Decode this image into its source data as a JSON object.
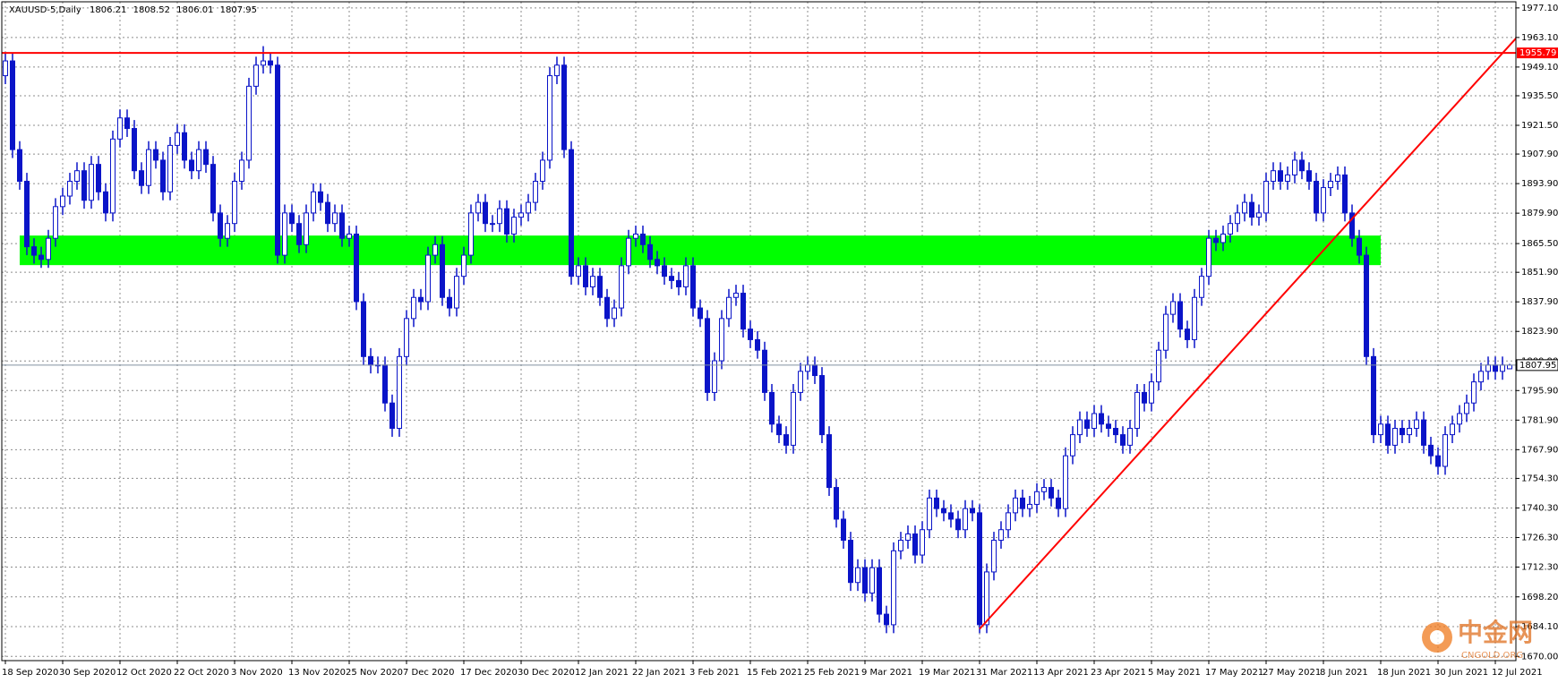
{
  "chart_data": {
    "type": "candlestick",
    "title": "XAUUSD-5,Daily",
    "categories": [
      "18 Sep 2020",
      null,
      null,
      null,
      null,
      null,
      null,
      null,
      "30 Sep 2020",
      null,
      null,
      null,
      null,
      null,
      null,
      null,
      "12 Oct 2020",
      null,
      null,
      null,
      null,
      null,
      null,
      null,
      "22 Oct 2020",
      null,
      null,
      null,
      null,
      null,
      null,
      null,
      "3 Nov 2020",
      null,
      null,
      null,
      null,
      null,
      null,
      null,
      "13 Nov 2020",
      null,
      null,
      null,
      null,
      null,
      null,
      null,
      "25 Nov 2020",
      null,
      null,
      null,
      null,
      null,
      null,
      null,
      "7 Dec 2020",
      null,
      null,
      null,
      null,
      null,
      null,
      null,
      "17 Dec 2020",
      null,
      null,
      null,
      null,
      null,
      null,
      null,
      "30 Dec 2020",
      null,
      null,
      null,
      null,
      null,
      null,
      null,
      "12 Jan 2021",
      null,
      null,
      null,
      null,
      null,
      null,
      null,
      "22 Jan 2021",
      null,
      null,
      null,
      null,
      null,
      null,
      null,
      "3 Feb 2021",
      null,
      null,
      null,
      null,
      null,
      null,
      null,
      "15 Feb 2021",
      null,
      null,
      null,
      null,
      null,
      null,
      null,
      "25 Feb 2021",
      null,
      null,
      null,
      null,
      null,
      null,
      null,
      "9 Mar 2021",
      null,
      null,
      null,
      null,
      null,
      null,
      null,
      "19 Mar 2021",
      null,
      null,
      null,
      null,
      null,
      null,
      null,
      "31 Mar 2021",
      null,
      null,
      null,
      null,
      null,
      null,
      null,
      "13 Apr 2021",
      null,
      null,
      null,
      null,
      null,
      null,
      null,
      "23 Apr 2021",
      null,
      null,
      null,
      null,
      null,
      null,
      null,
      "5 May 2021",
      null,
      null,
      null,
      null,
      null,
      null,
      null,
      "17 May 2021",
      null,
      null,
      null,
      null,
      null,
      null,
      null,
      "27 May 2021",
      null,
      null,
      null,
      null,
      null,
      null,
      null,
      "8 Jun 2021",
      null,
      null,
      null,
      null,
      null,
      null,
      null,
      "18 Jun 2021",
      null,
      null,
      null,
      null,
      null,
      null,
      null,
      "30 Jun 2021",
      null,
      null,
      null,
      null,
      null,
      null,
      null,
      "12 Jul 2021",
      null,
      null
    ],
    "open": [
      1945,
      1952,
      1910,
      1895,
      1864,
      1860,
      1858,
      1868,
      1883,
      1888,
      1895,
      1900,
      1886,
      1903,
      1890,
      1880,
      1915,
      1925,
      1920,
      1900,
      1893,
      1910,
      1905,
      1890,
      1912,
      1918,
      1905,
      1900,
      1910,
      1903,
      1880,
      1868,
      1875,
      1895,
      1905,
      1940,
      1950,
      1952,
      1950,
      1860,
      1880,
      1875,
      1865,
      1880,
      1890,
      1885,
      1875,
      1880,
      1868,
      1870,
      1838,
      1812,
      1808,
      1808,
      1790,
      1778,
      1812,
      1830,
      1840,
      1838,
      1860,
      1865,
      1840,
      1835,
      1850,
      1860,
      1880,
      1885,
      1875,
      1875,
      1882,
      1870,
      1878,
      1880,
      1885,
      1895,
      1905,
      1945,
      1950,
      1910,
      1850,
      1855,
      1845,
      1850,
      1840,
      1830,
      1835,
      1855,
      1868,
      1870,
      1865,
      1858,
      1855,
      1850,
      1848,
      1845,
      1855,
      1835,
      1830,
      1795,
      1810,
      1830,
      1840,
      1842,
      1825,
      1820,
      1815,
      1795,
      1780,
      1775,
      1770,
      1795,
      1805,
      1808,
      1803,
      1775,
      1750,
      1735,
      1725,
      1705,
      1712,
      1700,
      1712,
      1690,
      1685,
      1720,
      1725,
      1728,
      1718,
      1730,
      1745,
      1740,
      1738,
      1735,
      1730,
      1740,
      1738,
      1685,
      1710,
      1725,
      1730,
      1738,
      1745,
      1740,
      1742,
      1748,
      1750,
      1745,
      1740,
      1765,
      1775,
      1782,
      1778,
      1785,
      1780,
      1778,
      1775,
      1770,
      1778,
      1795,
      1790,
      1800,
      1815,
      1832,
      1838,
      1825,
      1820,
      1840,
      1850,
      1868,
      1866,
      1870,
      1875,
      1880,
      1885,
      1878,
      1880,
      1895,
      1900,
      1895,
      1898,
      1905,
      1900,
      1895,
      1880,
      1892,
      1895,
      1898,
      1880,
      1868,
      1860,
      1812,
      1775,
      1780,
      1770,
      1778,
      1775,
      1778,
      1782,
      1770,
      1765,
      1760,
      1775,
      1780,
      1785,
      1790,
      1800,
      1805,
      1808,
      1805,
      1806.21
    ],
    "high": [
      1956,
      1956,
      1914,
      1899,
      1868,
      1864,
      1872,
      1887,
      1892,
      1899,
      1904,
      1904,
      1907,
      1907,
      1894,
      1919,
      1929,
      1929,
      1924,
      1904,
      1914,
      1914,
      1909,
      1916,
      1922,
      1922,
      1909,
      1914,
      1914,
      1907,
      1884,
      1879,
      1899,
      1909,
      1944,
      1954,
      1959,
      1956,
      1954,
      1884,
      1884,
      1879,
      1884,
      1894,
      1894,
      1889,
      1884,
      1884,
      1874,
      1874,
      1842,
      1816,
      1812,
      1812,
      1794,
      1816,
      1834,
      1844,
      1844,
      1864,
      1869,
      1869,
      1844,
      1854,
      1864,
      1884,
      1889,
      1889,
      1879,
      1886,
      1886,
      1882,
      1884,
      1889,
      1899,
      1909,
      1949,
      1954,
      1954,
      1914,
      1859,
      1859,
      1854,
      1854,
      1844,
      1839,
      1859,
      1872,
      1874,
      1874,
      1869,
      1862,
      1859,
      1854,
      1852,
      1859,
      1859,
      1839,
      1834,
      1814,
      1834,
      1844,
      1846,
      1846,
      1829,
      1824,
      1819,
      1799,
      1784,
      1779,
      1799,
      1809,
      1812,
      1812,
      1807,
      1779,
      1754,
      1739,
      1729,
      1716,
      1716,
      1716,
      1716,
      1694,
      1724,
      1729,
      1732,
      1732,
      1734,
      1749,
      1749,
      1744,
      1742,
      1739,
      1744,
      1744,
      1742,
      1714,
      1729,
      1734,
      1742,
      1749,
      1749,
      1746,
      1752,
      1754,
      1754,
      1749,
      1769,
      1779,
      1786,
      1786,
      1789,
      1789,
      1784,
      1782,
      1779,
      1782,
      1799,
      1799,
      1804,
      1819,
      1836,
      1842,
      1842,
      1829,
      1844,
      1854,
      1872,
      1872,
      1874,
      1879,
      1884,
      1889,
      1889,
      1884,
      1899,
      1904,
      1904,
      1902,
      1909,
      1909,
      1904,
      1899,
      1896,
      1899,
      1902,
      1902,
      1884,
      1872,
      1864,
      1816,
      1784,
      1784,
      1782,
      1782,
      1782,
      1786,
      1786,
      1774,
      1769,
      1779,
      1784,
      1789,
      1794,
      1804,
      1809,
      1812,
      1812,
      1812,
      1808.52
    ],
    "low": [
      1941,
      1906,
      1891,
      1860,
      1856,
      1854,
      1854,
      1864,
      1879,
      1884,
      1891,
      1882,
      1882,
      1886,
      1876,
      1876,
      1911,
      1916,
      1896,
      1889,
      1889,
      1901,
      1886,
      1886,
      1908,
      1901,
      1896,
      1896,
      1899,
      1876,
      1864,
      1864,
      1871,
      1891,
      1901,
      1936,
      1946,
      1946,
      1856,
      1856,
      1871,
      1861,
      1861,
      1876,
      1881,
      1871,
      1871,
      1864,
      1864,
      1834,
      1808,
      1804,
      1804,
      1786,
      1774,
      1774,
      1808,
      1826,
      1834,
      1834,
      1856,
      1836,
      1831,
      1831,
      1846,
      1856,
      1876,
      1871,
      1871,
      1871,
      1866,
      1866,
      1874,
      1876,
      1881,
      1891,
      1901,
      1941,
      1906,
      1846,
      1846,
      1841,
      1841,
      1836,
      1826,
      1826,
      1831,
      1851,
      1864,
      1861,
      1854,
      1851,
      1846,
      1844,
      1841,
      1841,
      1831,
      1826,
      1791,
      1791,
      1806,
      1826,
      1836,
      1821,
      1816,
      1811,
      1791,
      1776,
      1771,
      1766,
      1766,
      1791,
      1801,
      1799,
      1771,
      1746,
      1731,
      1721,
      1701,
      1701,
      1696,
      1696,
      1686,
      1681,
      1681,
      1716,
      1721,
      1714,
      1714,
      1726,
      1736,
      1734,
      1731,
      1726,
      1726,
      1734,
      1681,
      1681,
      1706,
      1721,
      1726,
      1734,
      1736,
      1736,
      1738,
      1744,
      1741,
      1736,
      1736,
      1761,
      1771,
      1774,
      1774,
      1776,
      1774,
      1771,
      1766,
      1766,
      1774,
      1786,
      1786,
      1796,
      1811,
      1828,
      1821,
      1816,
      1816,
      1836,
      1846,
      1862,
      1862,
      1866,
      1871,
      1876,
      1874,
      1874,
      1876,
      1891,
      1891,
      1891,
      1894,
      1896,
      1891,
      1876,
      1876,
      1888,
      1891,
      1876,
      1864,
      1856,
      1808,
      1771,
      1771,
      1766,
      1766,
      1771,
      1771,
      1774,
      1766,
      1761,
      1756,
      1756,
      1771,
      1776,
      1781,
      1786,
      1796,
      1801,
      1801,
      1801,
      1806.01
    ],
    "close": [
      1952,
      1910,
      1895,
      1864,
      1860,
      1858,
      1868,
      1883,
      1888,
      1895,
      1900,
      1886,
      1903,
      1890,
      1880,
      1915,
      1925,
      1920,
      1900,
      1893,
      1910,
      1905,
      1890,
      1912,
      1918,
      1905,
      1900,
      1910,
      1903,
      1880,
      1868,
      1875,
      1895,
      1905,
      1940,
      1950,
      1952,
      1950,
      1860,
      1880,
      1875,
      1865,
      1880,
      1890,
      1885,
      1875,
      1880,
      1868,
      1870,
      1838,
      1812,
      1808,
      1808,
      1790,
      1778,
      1812,
      1830,
      1840,
      1838,
      1860,
      1865,
      1840,
      1835,
      1850,
      1860,
      1880,
      1885,
      1875,
      1875,
      1882,
      1870,
      1878,
      1880,
      1885,
      1895,
      1905,
      1945,
      1950,
      1910,
      1850,
      1855,
      1845,
      1850,
      1840,
      1830,
      1835,
      1855,
      1868,
      1870,
      1865,
      1858,
      1855,
      1850,
      1848,
      1845,
      1855,
      1835,
      1830,
      1795,
      1810,
      1830,
      1840,
      1842,
      1825,
      1820,
      1815,
      1795,
      1780,
      1775,
      1770,
      1795,
      1805,
      1808,
      1803,
      1775,
      1750,
      1735,
      1725,
      1705,
      1712,
      1700,
      1712,
      1690,
      1685,
      1720,
      1725,
      1728,
      1718,
      1730,
      1745,
      1740,
      1738,
      1735,
      1730,
      1740,
      1738,
      1685,
      1710,
      1725,
      1730,
      1738,
      1745,
      1740,
      1742,
      1748,
      1750,
      1745,
      1740,
      1765,
      1775,
      1782,
      1778,
      1785,
      1780,
      1778,
      1775,
      1770,
      1778,
      1795,
      1790,
      1800,
      1815,
      1832,
      1838,
      1825,
      1820,
      1840,
      1850,
      1868,
      1866,
      1870,
      1875,
      1880,
      1885,
      1878,
      1880,
      1895,
      1900,
      1895,
      1898,
      1905,
      1900,
      1895,
      1880,
      1892,
      1895,
      1898,
      1880,
      1868,
      1860,
      1812,
      1775,
      1780,
      1770,
      1778,
      1775,
      1778,
      1782,
      1770,
      1765,
      1760,
      1775,
      1780,
      1785,
      1790,
      1800,
      1805,
      1808,
      1805,
      1808,
      1807.95
    ],
    "color": "#0a14c8",
    "ylim": [
      1668,
      1980
    ],
    "yticks": [
      {
        "value": 1977.1,
        "label": "1977.10"
      },
      {
        "value": 1963.1,
        "label": "1963.10"
      },
      {
        "value": 1949.1,
        "label": "1949.10"
      },
      {
        "value": 1935.5,
        "label": "1935.50"
      },
      {
        "value": 1921.5,
        "label": "1921.50"
      },
      {
        "value": 1907.9,
        "label": "1907.90"
      },
      {
        "value": 1893.9,
        "label": "1893.90"
      },
      {
        "value": 1879.9,
        "label": "1879.90"
      },
      {
        "value": 1865.5,
        "label": "1865.50"
      },
      {
        "value": 1851.9,
        "label": "1851.90"
      },
      {
        "value": 1837.9,
        "label": "1837.90"
      },
      {
        "value": 1823.9,
        "label": "1823.90"
      },
      {
        "value": 1809.9,
        "label": "1809.90"
      },
      {
        "value": 1795.9,
        "label": "1795.90"
      },
      {
        "value": 1781.9,
        "label": "1781.90"
      },
      {
        "value": 1767.9,
        "label": "1767.90"
      },
      {
        "value": 1754.3,
        "label": "1754.30"
      },
      {
        "value": 1740.3,
        "label": "1740.30"
      },
      {
        "value": 1726.3,
        "label": "1726.30"
      },
      {
        "value": 1712.3,
        "label": "1712.30"
      },
      {
        "value": 1698.2,
        "label": "1698.20"
      },
      {
        "value": 1684.1,
        "label": "1684.10"
      },
      {
        "value": 1670,
        "label": "1670.00"
      }
    ],
    "grid": true,
    "hline": {
      "value": 1955.79,
      "color": "#ff0000"
    },
    "zone": {
      "low": 1855.3,
      "high": 1869.3,
      "from": 2,
      "to": 192,
      "color": "#00ff00"
    },
    "trendline": {
      "x": [
        136,
        211.5
      ],
      "y": [
        1683,
        1965
      ],
      "color": "#ff0000"
    },
    "watermark": {
      "name": "中金网",
      "site": "CNGOLD.ORG"
    }
  }
}
